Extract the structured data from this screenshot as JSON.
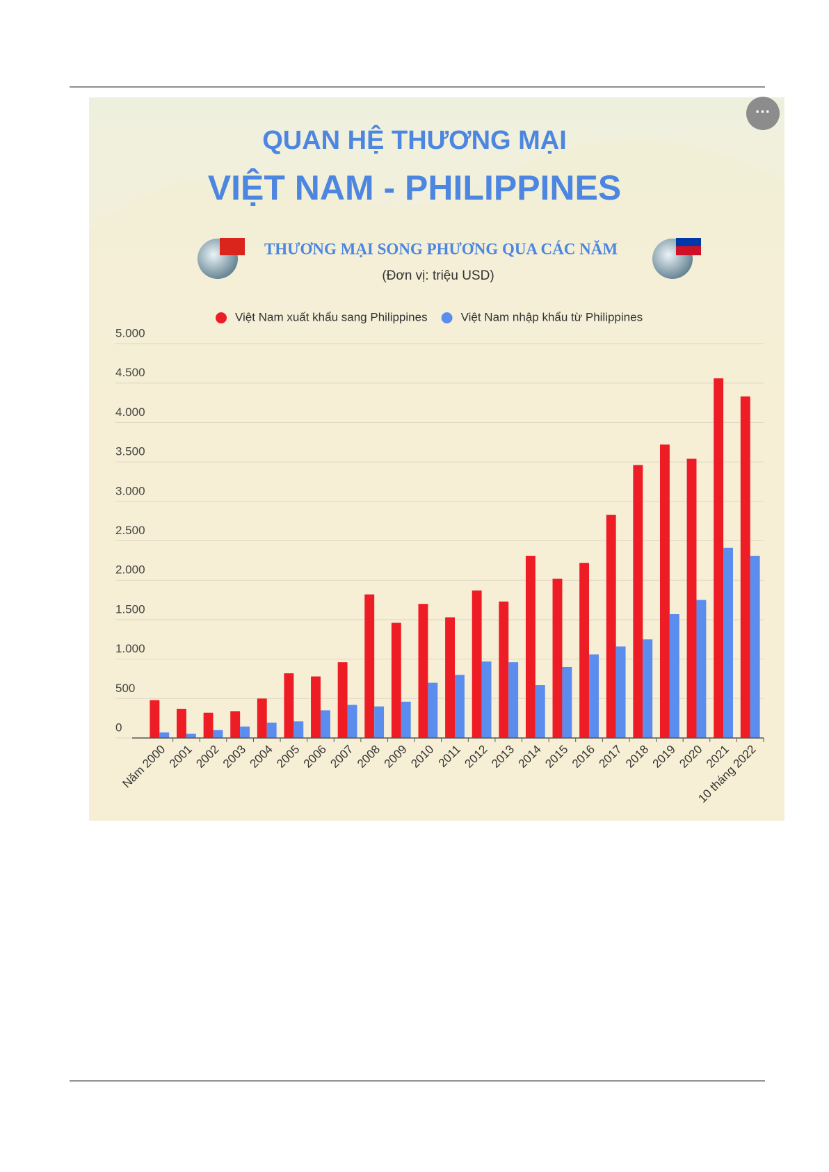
{
  "chart_data": {
    "type": "bar",
    "title": "QUAN HỆ THƯƠNG MẠI",
    "subtitle": "VIỆT NAM - PHILIPPINES",
    "chart_title": "THƯƠNG MẠI SONG PHƯƠNG QUA CÁC NĂM",
    "unit": "(Đơn vị:  triệu USD)",
    "categories": [
      "Năm 2000",
      "2001",
      "2002",
      "2003",
      "2004",
      "2005",
      "2006",
      "2007",
      "2008",
      "2009",
      "2010",
      "2011",
      "2012",
      "2013",
      "2014",
      "2015",
      "2016",
      "2017",
      "2018",
      "2019",
      "2020",
      "2021",
      "10 tháng 2022"
    ],
    "series": [
      {
        "name": "Việt Nam xuất khẩu sang Philippines",
        "color": "#ee1c25",
        "values": [
          480,
          370,
          320,
          340,
          500,
          820,
          780,
          960,
          1820,
          1460,
          1700,
          1530,
          1870,
          1730,
          2310,
          2020,
          2220,
          2830,
          3460,
          3720,
          3540,
          4560,
          4330
        ]
      },
      {
        "name": "Việt Nam nhập khẩu từ Philippines",
        "color": "#5b8def",
        "values": [
          70,
          55,
          100,
          145,
          195,
          210,
          350,
          420,
          400,
          460,
          700,
          800,
          970,
          960,
          670,
          900,
          1060,
          1160,
          1250,
          1570,
          1750,
          2410,
          2310
        ]
      }
    ],
    "ylim": [
      0,
      5000
    ],
    "yticks": [
      0,
      500,
      {
        "value": 1000,
        "label": "1.000"
      },
      {
        "value": 1500,
        "label": "1.500"
      },
      {
        "value": 2000,
        "label": "2.000"
      },
      {
        "value": 2500,
        "label": "2.500"
      },
      {
        "value": 3000,
        "label": "3.000"
      },
      {
        "value": 3500,
        "label": "3.500"
      },
      {
        "value": 4000,
        "label": "4.000"
      },
      {
        "value": 4500,
        "label": "4.500"
      },
      {
        "value": 5000,
        "label": "5.000"
      }
    ],
    "grid": true,
    "legend": "top"
  }
}
